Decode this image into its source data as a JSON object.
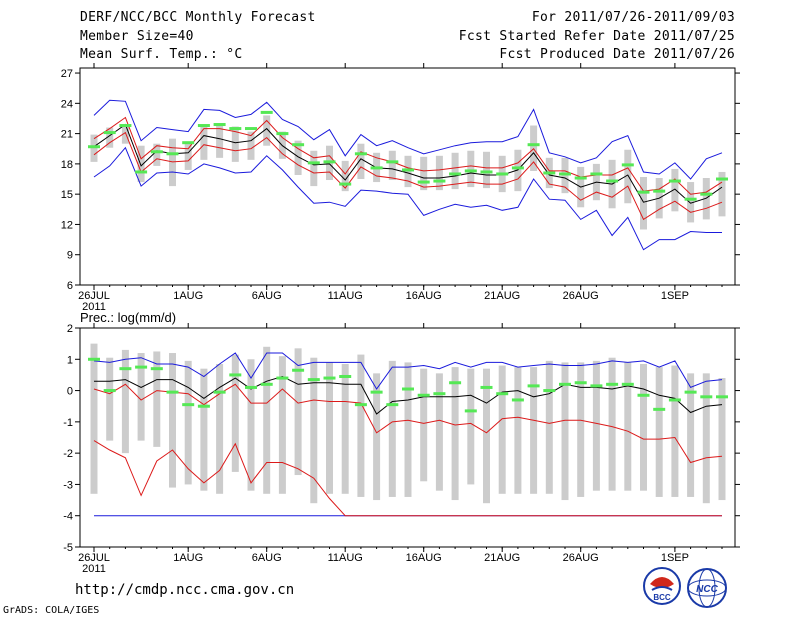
{
  "header": {
    "title": "DERF/NCC/BCC Monthly Forecast",
    "member": "Member Size=40",
    "variable": "Mean Surf. Temp.: °C",
    "period": "For 2011/07/26-2011/09/03",
    "started": "Fcst Started Refer Date 2011/07/25",
    "produced": "Fcst Produced Date 2011/07/26"
  },
  "footer": {
    "url": "http://cmdp.ncc.cma.gov.cn",
    "grads": "GrADS: COLA/IGES",
    "logo_bcc": "BCC",
    "logo_ncc": "NCC"
  },
  "colors": {
    "max": "#1a1adc",
    "min": "#1a1adc",
    "upper": "#dc1a1a",
    "lower": "#dc1a1a",
    "mean": "#000000",
    "box": "#cccccc",
    "obs": "#55e855"
  },
  "chart_data": [
    {
      "type": "line",
      "title": "Mean Surf. Temp.: °C",
      "ylim": [
        6,
        27.5
      ],
      "yticks": [
        6,
        9,
        12,
        15,
        18,
        21,
        24,
        27
      ],
      "xlim": [
        0,
        40
      ],
      "xticks": [
        {
          "x": 0,
          "label": "26JUL",
          "sub": "2011"
        },
        {
          "x": 6,
          "label": "1AUG"
        },
        {
          "x": 11,
          "label": "6AUG"
        },
        {
          "x": 16,
          "label": "11AUG"
        },
        {
          "x": 21,
          "label": "16AUG"
        },
        {
          "x": 26,
          "label": "21AUG"
        },
        {
          "x": 31,
          "label": "26AUG"
        },
        {
          "x": 37,
          "label": "1SEP"
        }
      ],
      "series": {
        "max": [
          22.8,
          24.3,
          24.2,
          20.3,
          21.6,
          21.4,
          21.2,
          23.4,
          23.3,
          22.6,
          22.9,
          24.1,
          22.4,
          21.7,
          20.4,
          21.4,
          18.8,
          20.9,
          19.8,
          20.3,
          19.6,
          19.0,
          19.4,
          19.8,
          20.1,
          20.2,
          20.2,
          20.7,
          23.4,
          19.1,
          18.7,
          18.1,
          18.6,
          20.2,
          20.8,
          17.2,
          17.0,
          18.1,
          16.5,
          18.5,
          19.1
        ],
        "upper": [
          20.5,
          21.5,
          22.6,
          18.5,
          19.8,
          19.6,
          19.5,
          21.5,
          21.5,
          21.2,
          20.8,
          22.3,
          20.6,
          19.5,
          18.6,
          18.8,
          17.0,
          19.2,
          18.6,
          18.2,
          17.6,
          17.3,
          17.4,
          17.6,
          17.8,
          17.6,
          17.6,
          18.1,
          19.5,
          17.3,
          17.3,
          16.7,
          16.9,
          16.9,
          17.6,
          15.3,
          15.5,
          16.5,
          15.0,
          15.2,
          16.2
        ],
        "mean": [
          19.7,
          20.8,
          21.9,
          17.8,
          19.3,
          19.0,
          19.1,
          20.8,
          20.5,
          20.1,
          20.3,
          21.5,
          19.8,
          18.7,
          17.9,
          18.0,
          16.4,
          18.5,
          17.6,
          17.5,
          17.1,
          16.6,
          16.6,
          16.8,
          17.1,
          16.9,
          16.9,
          17.4,
          19.1,
          16.9,
          16.6,
          15.7,
          16.2,
          16.0,
          16.9,
          14.2,
          14.6,
          15.5,
          14.1,
          14.6,
          15.7
        ],
        "lower": [
          18.9,
          20.1,
          21.1,
          17.2,
          18.5,
          18.2,
          18.3,
          19.9,
          19.6,
          19.3,
          19.5,
          20.6,
          19.0,
          17.9,
          17.1,
          17.2,
          15.6,
          17.7,
          16.8,
          16.6,
          16.3,
          15.7,
          15.8,
          16.0,
          16.2,
          16.0,
          16.0,
          16.5,
          18.2,
          16.0,
          15.7,
          14.4,
          15.2,
          14.7,
          15.8,
          12.5,
          13.5,
          14.3,
          13.2,
          13.6,
          14.2
        ],
        "min": [
          16.7,
          17.8,
          19.6,
          15.8,
          17.1,
          17.2,
          17.0,
          18.0,
          17.6,
          17.1,
          17.2,
          18.8,
          17.4,
          15.7,
          14.1,
          14.2,
          13.8,
          15.4,
          15.3,
          15.1,
          15.0,
          12.9,
          13.5,
          14.0,
          13.7,
          13.9,
          13.4,
          13.7,
          16.5,
          14.5,
          14.4,
          12.5,
          13.4,
          10.9,
          12.7,
          9.5,
          10.5,
          10.5,
          11.3,
          11.2,
          11.2
        ],
        "box_top": [
          20.9,
          21.6,
          21.8,
          19.8,
          20.0,
          20.5,
          20.2,
          21.9,
          21.9,
          21.7,
          21.2,
          22.8,
          21.2,
          20.3,
          19.3,
          19.8,
          18.3,
          20.0,
          19.1,
          19.3,
          18.8,
          18.7,
          18.8,
          19.1,
          19.3,
          19.2,
          18.8,
          19.4,
          21.8,
          18.6,
          18.6,
          17.7,
          18.0,
          18.4,
          19.4,
          16.7,
          16.6,
          17.5,
          16.2,
          16.6,
          17.2
        ],
        "box_bottom": [
          18.2,
          19.6,
          20.0,
          16.2,
          17.8,
          15.8,
          17.4,
          18.4,
          18.6,
          18.2,
          18.4,
          19.8,
          18.5,
          16.9,
          15.8,
          16.4,
          15.3,
          16.5,
          16.2,
          16.4,
          15.7,
          15.4,
          15.4,
          15.5,
          15.7,
          15.6,
          15.2,
          15.3,
          17.3,
          15.6,
          15.1,
          13.7,
          14.4,
          13.6,
          14.1,
          11.5,
          12.6,
          13.3,
          12.2,
          12.5,
          12.8
        ],
        "obs": [
          19.7,
          21.1,
          21.8,
          17.2,
          19.2,
          19.0,
          20.1,
          21.8,
          21.9,
          21.5,
          21.5,
          23.1,
          21.0,
          19.9,
          18.1,
          18.2,
          16.0,
          19.0,
          17.6,
          18.2,
          17.4,
          16.2,
          16.3,
          17.0,
          17.3,
          17.2,
          17.0,
          17.6,
          19.9,
          17.1,
          17.0,
          16.6,
          17.0,
          16.3,
          17.9,
          15.2,
          15.3,
          16.3,
          14.5,
          15.0,
          16.5
        ]
      }
    },
    {
      "type": "line",
      "title": "Prec.: log(mm/d)",
      "ylim": [
        -5,
        2
      ],
      "yticks": [
        -5,
        -4,
        -3,
        -2,
        -1,
        0,
        1,
        2
      ],
      "xlim": [
        0,
        40
      ],
      "xticks": [
        {
          "x": 0,
          "label": "26JUL",
          "sub": "2011"
        },
        {
          "x": 6,
          "label": "1AUG"
        },
        {
          "x": 11,
          "label": "6AUG"
        },
        {
          "x": 16,
          "label": "11AUG"
        },
        {
          "x": 21,
          "label": "16AUG"
        },
        {
          "x": 26,
          "label": "21AUG"
        },
        {
          "x": 31,
          "label": "26AUG"
        },
        {
          "x": 37,
          "label": "1SEP"
        }
      ],
      "series": {
        "max": [
          0.95,
          0.9,
          1.0,
          1.05,
          0.85,
          0.85,
          0.75,
          0.45,
          0.85,
          1.2,
          0.4,
          1.2,
          1.2,
          0.8,
          0.9,
          0.9,
          0.9,
          0.9,
          0.05,
          0.75,
          0.75,
          0.8,
          0.7,
          0.9,
          0.75,
          0.9,
          0.9,
          0.75,
          0.8,
          0.85,
          0.8,
          0.8,
          0.85,
          0.95,
          0.9,
          0.95,
          0.75,
          0.95,
          0.1,
          0.3,
          0.35
        ],
        "upper": [
          0.05,
          -0.1,
          0.2,
          -0.3,
          0.0,
          -0.05,
          -0.1,
          -0.45,
          -0.1,
          0.2,
          -0.4,
          -0.4,
          0.05,
          -0.4,
          -0.3,
          -0.35,
          -0.35,
          -0.4,
          -1.35,
          -1.0,
          -0.95,
          -1.05,
          -0.95,
          -1.1,
          -1.05,
          -1.35,
          -0.9,
          -0.85,
          -0.95,
          -1.05,
          -0.95,
          -0.95,
          -1.05,
          -1.15,
          -1.3,
          -1.55,
          -1.55,
          -1.5,
          -2.3,
          -2.15,
          -2.1
        ],
        "mean": [
          0.3,
          0.3,
          0.35,
          0.1,
          0.35,
          0.35,
          0.1,
          -0.25,
          0.1,
          0.4,
          0.05,
          0.3,
          0.45,
          0.2,
          0.25,
          0.25,
          0.2,
          0.2,
          -0.75,
          -0.35,
          -0.3,
          -0.2,
          -0.2,
          -0.2,
          -0.15,
          -0.4,
          -0.05,
          0.0,
          -0.2,
          -0.1,
          0.2,
          0.1,
          0.1,
          0.05,
          0.15,
          0.05,
          -0.15,
          -0.25,
          -0.7,
          -0.5,
          -0.45
        ],
        "lower": [
          -1.6,
          -1.9,
          -2.15,
          -3.35,
          -2.25,
          -1.9,
          -2.5,
          -2.95,
          -2.55,
          -1.7,
          -2.95,
          -2.3,
          -2.3,
          -2.5,
          -2.8,
          -3.45,
          -4.0,
          -4.0,
          -4.0,
          -4.0,
          -4.0,
          -4.0,
          -4.0,
          -4.0,
          -4.0,
          -4.0,
          -4.0,
          -4.0,
          -4.0,
          -4.0,
          -4.0,
          -4.0,
          -4.0,
          -4.0,
          -4.0,
          -4.0,
          -4.0,
          -4.0,
          -4.0,
          -4.0,
          -4.0
        ],
        "min": [
          -4,
          -4,
          -4,
          -4,
          -4,
          -4,
          -4,
          -4,
          -4,
          -4,
          -4,
          -4,
          -4,
          -4,
          -4,
          -4,
          -4,
          -4,
          -4,
          -4,
          -4,
          -4,
          -4,
          -4,
          -4,
          -4,
          -4,
          -4,
          -4,
          -4,
          -4,
          -4,
          -4,
          -4,
          -4,
          -4,
          -4,
          -4,
          -4,
          -4,
          -4
        ],
        "box_top": [
          1.5,
          1.05,
          1.3,
          1.2,
          1.25,
          1.2,
          0.95,
          0.7,
          0.85,
          1.15,
          1.0,
          1.4,
          1.1,
          1.35,
          1.05,
          0.9,
          0.85,
          1.15,
          0.55,
          0.95,
          0.9,
          0.7,
          0.55,
          0.75,
          0.7,
          0.7,
          0.8,
          0.75,
          0.75,
          0.95,
          0.9,
          0.9,
          0.95,
          1.05,
          0.9,
          0.85,
          0.75,
          0.8,
          0.55,
          0.55,
          0.4
        ],
        "box_bottom": [
          -3.3,
          -1.6,
          -2.0,
          -1.6,
          -1.8,
          -3.1,
          -3.0,
          -3.2,
          -3.3,
          -2.6,
          -3.2,
          -3.3,
          -3.3,
          -2.7,
          -3.6,
          -3.3,
          -3.3,
          -3.4,
          -3.5,
          -3.4,
          -3.4,
          -2.9,
          -3.2,
          -3.5,
          -3.0,
          -3.6,
          -3.3,
          -3.3,
          -3.3,
          -3.3,
          -3.5,
          -3.4,
          -3.2,
          -3.2,
          -3.2,
          -3.2,
          -3.4,
          -3.4,
          -3.4,
          -3.6,
          -3.5
        ],
        "obs": [
          1.0,
          0.0,
          0.7,
          0.75,
          0.7,
          -0.05,
          -0.45,
          -0.5,
          -0.05,
          0.5,
          0.1,
          0.2,
          0.4,
          0.65,
          0.35,
          0.4,
          0.45,
          -0.45,
          -0.05,
          -0.45,
          0.05,
          -0.15,
          -0.1,
          0.25,
          -0.65,
          0.1,
          -0.1,
          -0.3,
          0.15,
          0.0,
          0.2,
          0.25,
          0.15,
          0.2,
          0.2,
          -0.15,
          -0.6,
          -0.3,
          -0.05,
          -0.2,
          -0.2
        ]
      }
    }
  ]
}
